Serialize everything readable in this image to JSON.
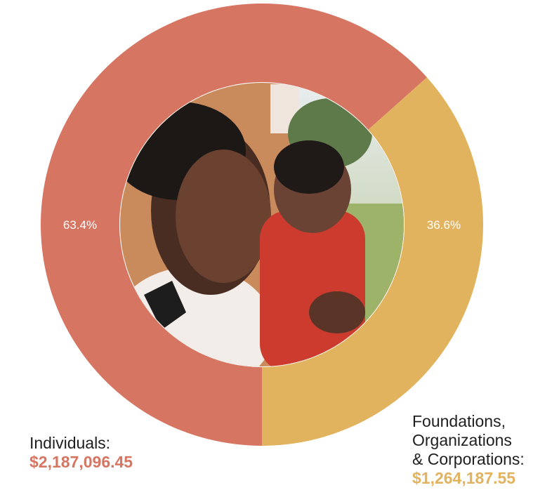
{
  "chart_data": {
    "type": "pie",
    "style": "donut",
    "slices": [
      {
        "label": "Individuals:",
        "amount": "$2,187,096.45",
        "value": 63.4,
        "value_label": "63.4%",
        "color": "#d67562"
      },
      {
        "label": "Foundations, Organizations & Corporations:",
        "amount": "$1,264,187.55",
        "value": 36.6,
        "value_label": "36.6%",
        "color": "#e2b35f"
      }
    ],
    "legend": {
      "individuals": {
        "line1": "Individuals:",
        "amount": "$2,187,096.45"
      },
      "foundations": {
        "line1": "Foundations,",
        "line2": "Organizations",
        "line3": "& Corporations:",
        "amount": "$1,264,187.55"
      }
    }
  }
}
